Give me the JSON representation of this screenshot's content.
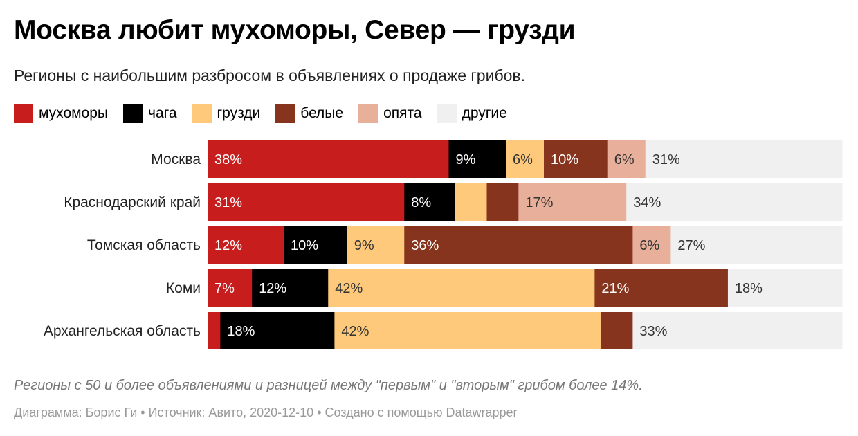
{
  "title": "Москва любит мухоморы, Север — грузди",
  "subtitle": "Регионы с наибольшим разбросом в объявлениях о продаже грибов.",
  "notes": "Регионы с 50 и более объявлениями и разницей между \"первым\" и \"вторым\" грибом более 14%.",
  "source": "Диаграмма: Борис Ги • Источник: Авито, 2020-12-10 • Создано с помощью Datawrapper",
  "chart_data": {
    "type": "bar",
    "orientation": "horizontal",
    "stacked": true,
    "percent_suffix": "%",
    "legend_placement": "top-left",
    "categories": [
      "Москва",
      "Краснодарский край",
      "Томская область",
      "Коми",
      "Архангельская область"
    ],
    "series": [
      {
        "name": "мухоморы",
        "color": "#c71e1d",
        "text_color": "#ffffff",
        "values": [
          38,
          31,
          12,
          7,
          2
        ],
        "labeled": [
          true,
          true,
          true,
          true,
          false
        ]
      },
      {
        "name": "чага",
        "color": "#000000",
        "text_color": "#ffffff",
        "values": [
          9,
          8,
          10,
          12,
          18
        ],
        "labeled": [
          true,
          true,
          true,
          true,
          true
        ]
      },
      {
        "name": "грузди",
        "color": "#fec97a",
        "text_color": "#333333",
        "values": [
          6,
          5,
          9,
          42,
          42
        ],
        "labeled": [
          true,
          false,
          true,
          true,
          true
        ]
      },
      {
        "name": "белые",
        "color": "#86341d",
        "text_color": "#ffffff",
        "values": [
          10,
          5,
          36,
          21,
          5
        ],
        "labeled": [
          true,
          false,
          true,
          true,
          false
        ]
      },
      {
        "name": "опята",
        "color": "#e8af9b",
        "text_color": "#333333",
        "values": [
          6,
          17,
          6,
          0,
          0
        ],
        "labeled": [
          true,
          true,
          true,
          false,
          false
        ]
      },
      {
        "name": "другие",
        "color": "#f0f0f0",
        "text_color": "#333333",
        "values": [
          31,
          34,
          27,
          18,
          33
        ],
        "labeled": [
          true,
          true,
          true,
          true,
          true
        ]
      }
    ],
    "xlim": [
      0,
      100
    ]
  }
}
